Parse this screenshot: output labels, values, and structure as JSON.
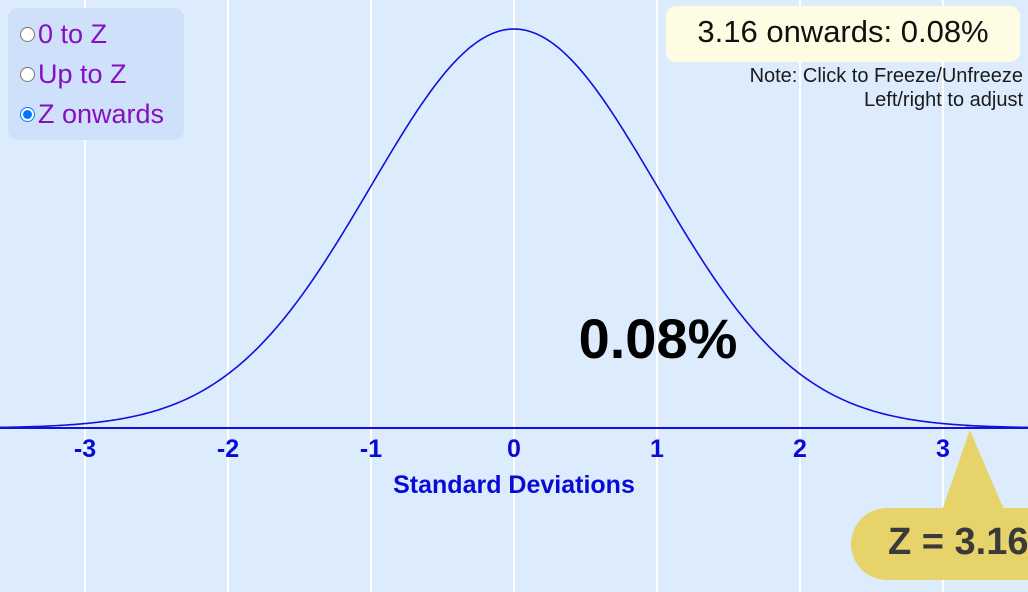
{
  "modes": [
    {
      "label": "0 to Z",
      "selected": false
    },
    {
      "label": "Up to Z",
      "selected": false
    },
    {
      "label": "Z onwards",
      "selected": true
    }
  ],
  "result": {
    "text": "3.16 onwards: 0.08%"
  },
  "note": {
    "line1": "Note: Click to Freeze/Unfreeze",
    "line2": "Left/right to adjust"
  },
  "area_label": "0.08%",
  "z_marker": {
    "label": "Z = 3.16",
    "value": 3.16
  },
  "colors": {
    "background": "#dcecfd",
    "curve": "#1010e0",
    "axis_text": "#0a0ad8",
    "grid": "#ffffff",
    "marker": "#e6d36a",
    "mode_text": "#8410c0"
  },
  "chart_data": {
    "type": "area",
    "distribution": "standard normal",
    "mean": 0,
    "sd": 1,
    "xlim": [
      -3.6,
      3.6
    ],
    "ticks": [
      "-3",
      "-2",
      "-1",
      "0",
      "1",
      "2",
      "3"
    ],
    "tick_values": [
      -3,
      -2,
      -1,
      0,
      1,
      2,
      3
    ],
    "xlabel": "Standard Deviations",
    "shaded_region": {
      "from": 3.16,
      "to": "infinity"
    },
    "shaded_percent": 0.08,
    "grid": true
  }
}
